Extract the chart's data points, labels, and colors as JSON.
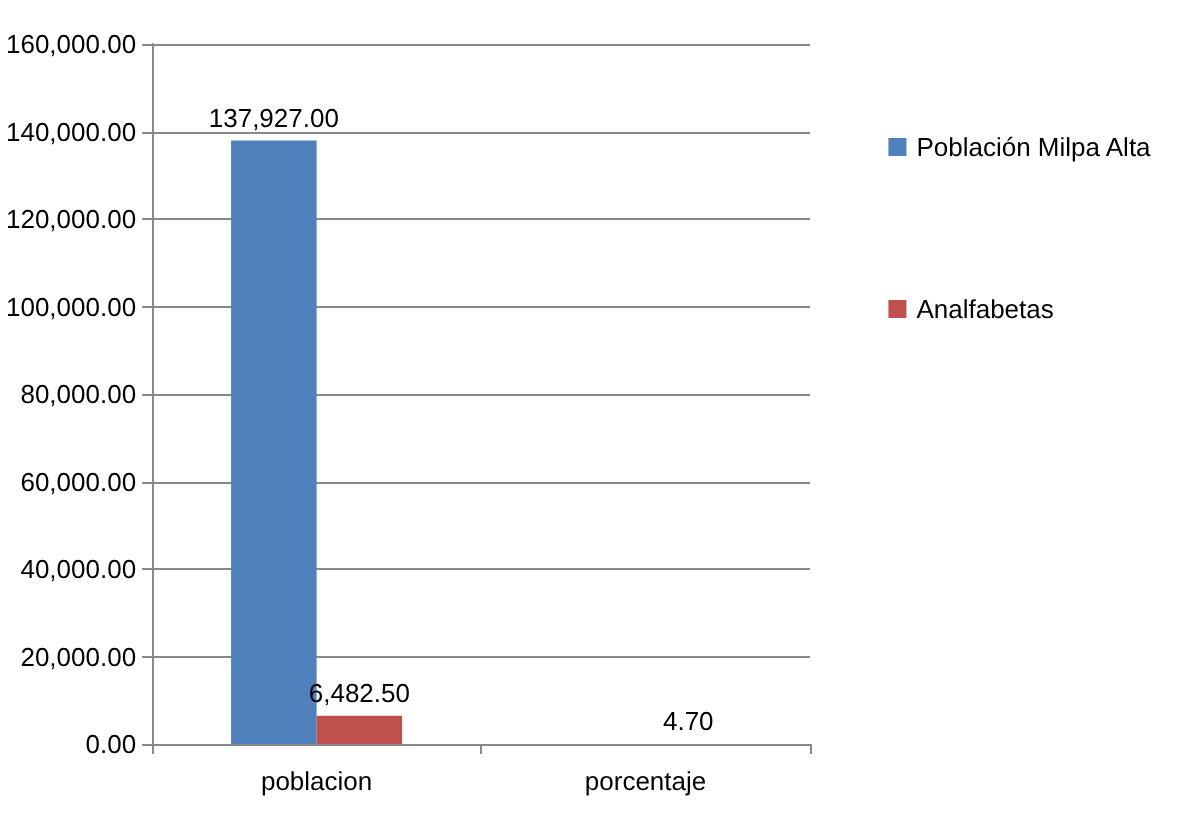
{
  "chart_data": {
    "type": "bar",
    "categories": [
      "poblacion",
      "porcentaje"
    ],
    "series": [
      {
        "name": "Población Milpa Alta",
        "color": "#4f81bd",
        "values": [
          137927,
          null
        ],
        "value_labels": [
          "137,927.00",
          null
        ]
      },
      {
        "name": "Analfabetas",
        "color": "#c0504d",
        "values": [
          6482.5,
          4.7
        ],
        "value_labels": [
          "6,482.50",
          "4.70"
        ]
      }
    ],
    "ylim": [
      0,
      160000
    ],
    "yticks": [
      {
        "value": 0,
        "label": "0.00"
      },
      {
        "value": 20000,
        "label": "20,000.00"
      },
      {
        "value": 40000,
        "label": "40,000.00"
      },
      {
        "value": 60000,
        "label": "60,000.00"
      },
      {
        "value": 80000,
        "label": "80,000.00"
      },
      {
        "value": 100000,
        "label": "100,000.00"
      },
      {
        "value": 120000,
        "label": "120,000.00"
      },
      {
        "value": 140000,
        "label": "140,000.00"
      },
      {
        "value": 160000,
        "label": "160,000.00"
      }
    ],
    "grid": "y",
    "legend": "right"
  }
}
